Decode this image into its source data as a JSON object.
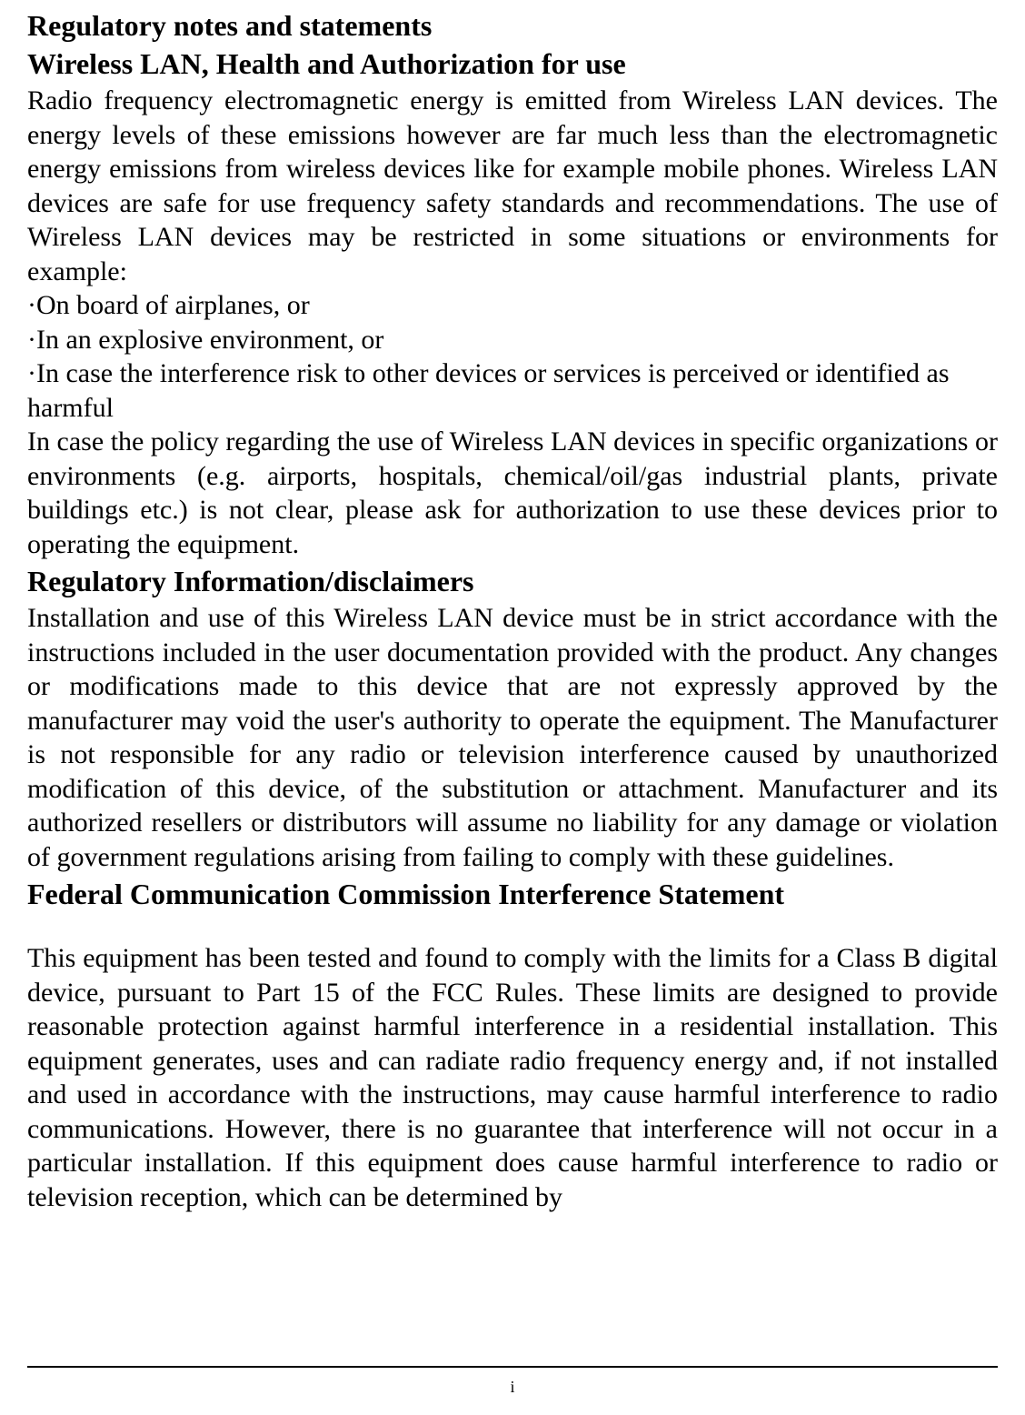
{
  "document": {
    "headings": {
      "h1": "Regulatory notes and statements",
      "h2": "Wireless LAN, Health and Authorization for use",
      "h3": "Regulatory Information/disclaimers",
      "h4": "Federal Communication Commission Interference Statement"
    },
    "paragraphs": {
      "p1": "Radio frequency electromagnetic energy is emitted from Wireless LAN devices. The energy levels of these emissions however are far much less than the electromagnetic energy emissions from wireless devices like for example mobile phones. Wireless LAN devices are safe for use frequency safety standards and recommendations. The use of Wireless LAN devices may be restricted in some situations or environments for example:",
      "bullet1": "·On board of airplanes, or",
      "bullet2": "·In an explosive environment, or",
      "bullet3": "·In case the interference risk to other devices or services is perceived or identified as harmful",
      "p2": "In case the policy regarding the use of Wireless LAN devices in specific organizations or environments (e.g. airports, hospitals, chemical/oil/gas industrial plants, private buildings etc.) is not clear, please ask for authorization to use these devices prior to operating the equipment.",
      "p3": "Installation and use of this Wireless LAN device must be in strict accordance with the instructions included in the user documentation provided with the product. Any changes or modifications made to this device that are not expressly approved by the manufacturer may void the user's authority to operate the equipment. The Manufacturer is not responsible for any radio or television interference caused by unauthorized modification of this device, of the substitution or attachment. Manufacturer and its authorized resellers or distributors will assume no liability for any damage or violation of government regulations arising from failing to comply with these guidelines.",
      "p4": "This equipment has been tested and found to comply with the limits for a Class B digital device, pursuant to Part 15 of the FCC Rules.  These limits are designed to provide reasonable protection against harmful interference in a residential installation. This equipment generates, uses and can radiate radio frequency energy and, if not installed and used in accordance with the instructions, may cause harmful interference to radio communications.  However, there is no guarantee that interference will not occur in a particular installation.  If this equipment does cause harmful interference to radio or television reception, which can be determined by"
    },
    "footer": {
      "page_number": "i"
    },
    "styling": {
      "font_family": "Times New Roman",
      "heading_fontsize": 32,
      "heading_weight": "bold",
      "body_fontsize": 30,
      "body_weight": "normal",
      "text_color": "#000000",
      "background_color": "#ffffff",
      "text_align": "justify",
      "line_height": 1.25,
      "page_number_fontsize": 18,
      "footer_rule_color": "#000000",
      "footer_rule_width": 2
    }
  }
}
